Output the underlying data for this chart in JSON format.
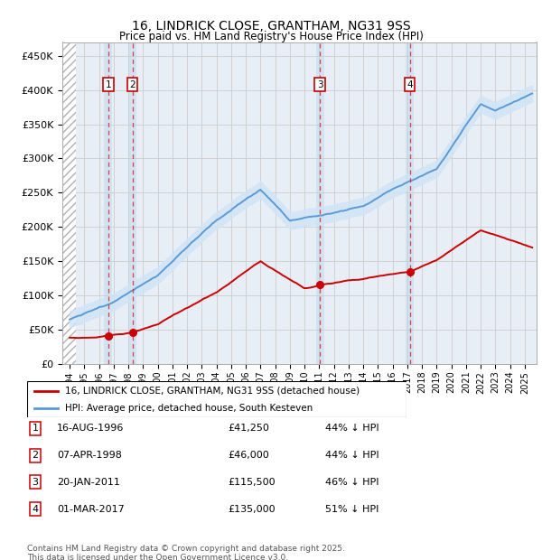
{
  "title1": "16, LINDRICK CLOSE, GRANTHAM, NG31 9SS",
  "title2": "Price paid vs. HM Land Registry's House Price Index (HPI)",
  "xlim": [
    1993.5,
    2025.8
  ],
  "ylim": [
    0,
    470000
  ],
  "yticks": [
    0,
    50000,
    100000,
    150000,
    200000,
    250000,
    300000,
    350000,
    400000,
    450000
  ],
  "ytick_labels": [
    "£0",
    "£50K",
    "£100K",
    "£150K",
    "£200K",
    "£250K",
    "£300K",
    "£350K",
    "£400K",
    "£450K"
  ],
  "xticks": [
    1994,
    1995,
    1996,
    1997,
    1998,
    1999,
    2000,
    2001,
    2002,
    2003,
    2004,
    2005,
    2006,
    2007,
    2008,
    2009,
    2010,
    2011,
    2012,
    2013,
    2014,
    2015,
    2016,
    2017,
    2018,
    2019,
    2020,
    2021,
    2022,
    2023,
    2024,
    2025
  ],
  "hatch_end": 1994.4,
  "transactions": [
    {
      "num": 1,
      "year": 1996.62,
      "price": 41250,
      "label": "16-AUG-1996",
      "amount": "£41,250",
      "pct": "44% ↓ HPI"
    },
    {
      "num": 2,
      "year": 1998.27,
      "price": 46000,
      "label": "07-APR-1998",
      "amount": "£46,000",
      "pct": "44% ↓ HPI"
    },
    {
      "num": 3,
      "year": 2011.05,
      "price": 115500,
      "label": "20-JAN-2011",
      "amount": "£115,500",
      "pct": "46% ↓ HPI"
    },
    {
      "num": 4,
      "year": 2017.16,
      "price": 135000,
      "label": "01-MAR-2017",
      "amount": "£135,000",
      "pct": "51% ↓ HPI"
    }
  ],
  "red_line_color": "#cc0000",
  "blue_line_color": "#5b9bd5",
  "blue_fill_color": "#d0e4f7",
  "grid_color": "#cccccc",
  "bg_color": "#e8eef5",
  "legend_label_red": "16, LINDRICK CLOSE, GRANTHAM, NG31 9SS (detached house)",
  "legend_label_blue": "HPI: Average price, detached house, South Kesteven",
  "footnote": "Contains HM Land Registry data © Crown copyright and database right 2025.\nThis data is licensed under the Open Government Licence v3.0."
}
